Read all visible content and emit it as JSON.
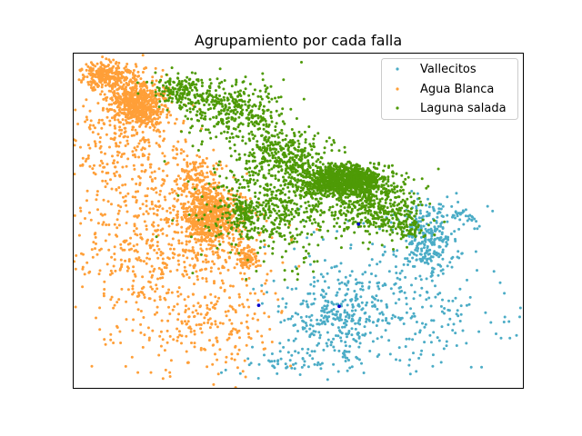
{
  "chart_data": {
    "type": "scatter",
    "title": "Agrupamiento por cada falla",
    "xlabel": "",
    "ylabel": "",
    "axes_ticks_visible": false,
    "legend_position": "upper right",
    "xlim": [
      0,
      100
    ],
    "ylim": [
      0,
      100
    ],
    "series": [
      {
        "name": "Vallecitos",
        "color": "#4bacc6",
        "marker_size": 2,
        "clusters": [
          {
            "cx": 78.5,
            "cy": 45.0,
            "sx": 3.0,
            "sy": 5.0,
            "n": 260
          },
          {
            "cx": 57.5,
            "cy": 20.5,
            "sx": 6.0,
            "sy": 6.0,
            "n": 260
          },
          {
            "cx": 67.0,
            "cy": 30.0,
            "sx": 12.0,
            "sy": 9.0,
            "n": 170
          },
          {
            "cx": 78.0,
            "cy": 19.0,
            "sx": 10.0,
            "sy": 7.0,
            "n": 110
          },
          {
            "cx": 50.0,
            "cy": 7.5,
            "sx": 7.0,
            "sy": 2.5,
            "n": 60
          },
          {
            "cx": 86.0,
            "cy": 52.0,
            "sx": 3.5,
            "sy": 2.0,
            "n": 40
          }
        ],
        "points": [
          [
            96.0,
            21.2
          ],
          [
            90.8,
            6.2
          ],
          [
            88.5,
            6.2
          ],
          [
            39.5,
            7.4
          ],
          [
            83.5,
            26.0
          ]
        ]
      },
      {
        "name": "Agua Blanca",
        "color": "#ff9f38",
        "marker_size": 2,
        "clusters": [
          {
            "cx": 14.5,
            "cy": 85.0,
            "sx": 3.2,
            "sy": 3.8,
            "n": 650
          },
          {
            "cx": 7.0,
            "cy": 93.5,
            "sx": 2.8,
            "sy": 2.0,
            "n": 260
          },
          {
            "cx": 30.5,
            "cy": 51.5,
            "sx": 3.2,
            "sy": 4.5,
            "n": 750
          },
          {
            "cx": 38.8,
            "cy": 38.8,
            "sx": 1.2,
            "sy": 1.5,
            "n": 90
          },
          {
            "cx": 12.0,
            "cy": 72.0,
            "sx": 7.0,
            "sy": 10.0,
            "n": 340
          },
          {
            "cx": 23.0,
            "cy": 43.0,
            "sx": 11.0,
            "sy": 8.5,
            "n": 380
          },
          {
            "cx": 30.0,
            "cy": 20.0,
            "sx": 8.5,
            "sy": 8.0,
            "n": 230
          },
          {
            "cx": 28.0,
            "cy": 64.5,
            "sx": 3.0,
            "sy": 3.0,
            "n": 110
          },
          {
            "cx": 12.0,
            "cy": 32.0,
            "sx": 9.0,
            "sy": 10.0,
            "n": 120
          }
        ],
        "points": [
          [
            7.1,
            13.0
          ],
          [
            17.2,
            4.6
          ],
          [
            21.4,
            4.6
          ],
          [
            11.6,
            6.4
          ],
          [
            14.3,
            4.6
          ]
        ]
      },
      {
        "name": "Laguna salada",
        "color": "#4e9a06",
        "marker_size": 2,
        "clusters": [
          {
            "cx": 60.5,
            "cy": 62.0,
            "sx": 4.5,
            "sy": 2.3,
            "n": 1150
          },
          {
            "cx": 36.5,
            "cy": 82.5,
            "sx": 5.5,
            "sy": 4.5,
            "n": 330
          },
          {
            "cx": 24.5,
            "cy": 88.5,
            "sx": 3.5,
            "sy": 2.5,
            "n": 190
          },
          {
            "cx": 47.0,
            "cy": 69.5,
            "sx": 5.0,
            "sy": 4.0,
            "n": 330
          },
          {
            "cx": 45.0,
            "cy": 54.0,
            "sx": 8.0,
            "sy": 7.5,
            "n": 520
          },
          {
            "cx": 67.5,
            "cy": 53.5,
            "sx": 5.0,
            "sy": 4.0,
            "n": 330
          },
          {
            "cx": 38.0,
            "cy": 52.0,
            "sx": 1.5,
            "sy": 2.5,
            "n": 90
          },
          {
            "cx": 75.0,
            "cy": 48.0,
            "sx": 2.5,
            "sy": 2.0,
            "n": 70
          }
        ],
        "points": [
          [
            81.2,
            65.5
          ],
          [
            78.9,
            60.3
          ],
          [
            76.3,
            52.1
          ]
        ]
      },
      {
        "name": "",
        "color": "#0000cc",
        "marker_size": 2.5,
        "clusters": [],
        "points": [
          [
            63.4,
            49.0
          ],
          [
            59.1,
            24.4
          ],
          [
            41.2,
            24.7
          ]
        ]
      }
    ]
  }
}
